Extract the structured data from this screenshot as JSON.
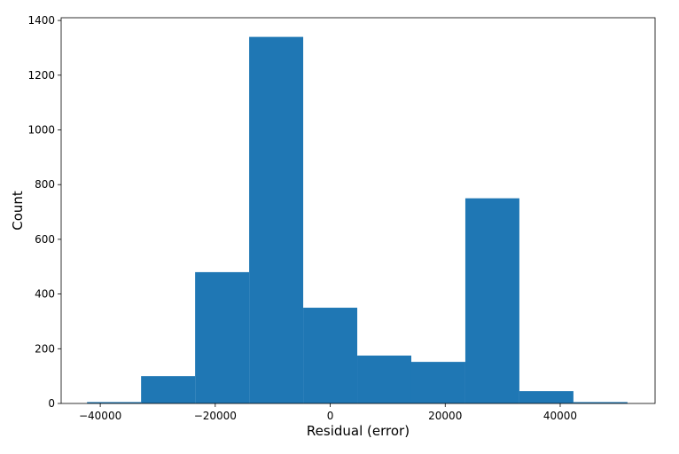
{
  "chart_data": {
    "type": "bar",
    "xlabel": "Residual (error)",
    "ylabel": "Count",
    "xlim": [
      -46800,
      56500
    ],
    "ylim": [
      0,
      1410
    ],
    "xticks": [
      -40000,
      -20000,
      0,
      20000,
      40000
    ],
    "xtick_labels": [
      "−40000",
      "−20000",
      "0",
      "20000",
      "40000"
    ],
    "yticks": [
      0,
      200,
      400,
      600,
      800,
      1000,
      1200,
      1400
    ],
    "ytick_labels": [
      "0",
      "200",
      "400",
      "600",
      "800",
      "1000",
      "1200",
      "1400"
    ],
    "bin_edges": [
      -42300,
      -32900,
      -23500,
      -14100,
      -4700,
      4700,
      14100,
      23500,
      32900,
      42300,
      51700
    ],
    "values": [
      5,
      100,
      480,
      1340,
      350,
      175,
      152,
      750,
      45,
      5
    ],
    "bar_color": "#1f77b4",
    "grid": false,
    "legend": "none"
  }
}
